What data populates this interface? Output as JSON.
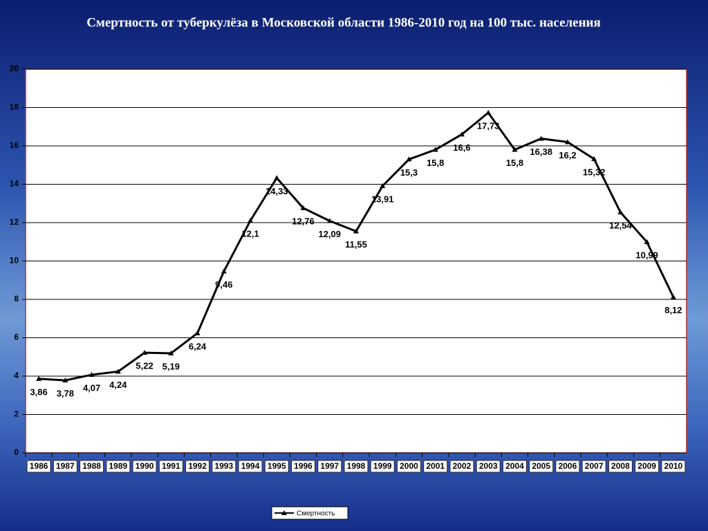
{
  "chart_data": {
    "type": "line",
    "title": "Смертность от туберкулёза в Московской области 1986-2010 год на 100 тыс. населения",
    "categories": [
      "1986",
      "1987",
      "1988",
      "1989",
      "1990",
      "1991",
      "1992",
      "1993",
      "1994",
      "1995",
      "1996",
      "1997",
      "1998",
      "1999",
      "2000",
      "2001",
      "2002",
      "2003",
      "2004",
      "2005",
      "2006",
      "2007",
      "2008",
      "2009",
      "2010"
    ],
    "series": [
      {
        "name": "Смертность",
        "color": "#000000",
        "values": [
          3.86,
          3.78,
          4.07,
          4.24,
          5.22,
          5.19,
          6.24,
          9.46,
          12.1,
          14.33,
          12.76,
          12.09,
          11.55,
          13.91,
          15.3,
          15.8,
          16.6,
          17.73,
          15.8,
          16.38,
          16.2,
          15.32,
          12.54,
          10.99,
          8.12
        ],
        "value_labels": [
          "3,86",
          "3,78",
          "4,07",
          "4,24",
          "5,22",
          "5,19",
          "6,24",
          "9,46",
          "12,1",
          "14,33",
          "12,76",
          "12,09",
          "11,55",
          "13,91",
          "15,3",
          "15,8",
          "16,6",
          "17,73",
          "15,8",
          "16,38",
          "16,2",
          "15,32",
          "12,54",
          "10,99",
          "8,12"
        ]
      }
    ],
    "ylim": [
      0,
      20
    ],
    "yticks": [
      0,
      2,
      4,
      6,
      8,
      10,
      12,
      14,
      16,
      18,
      20
    ],
    "grid": true,
    "legend": "bottom"
  }
}
